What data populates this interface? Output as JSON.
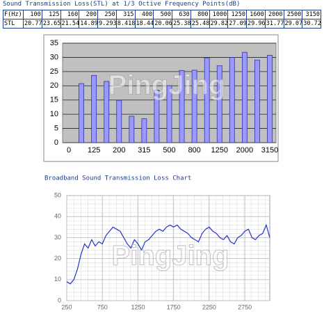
{
  "table": {
    "title": "Sound Transmission Loss(STL) at 1/3 Octive Frequency Points(dB)",
    "header": [
      "F(Hz)",
      100,
      125,
      160,
      200,
      250,
      315,
      400,
      500,
      630,
      800,
      1000,
      1250,
      1600,
      2000,
      2500,
      3150
    ],
    "rows": [
      [
        "STL",
        20.77,
        23.65,
        21.54,
        14.89,
        9.293,
        8.418,
        18.44,
        20.06,
        25.38,
        25.48,
        29.82,
        27.09,
        29.96,
        31.77,
        29.07,
        30.72
      ]
    ]
  },
  "watermark": "PingJing",
  "chart_data": [
    {
      "type": "bar",
      "categories": [
        "0",
        null,
        "125",
        null,
        "200",
        null,
        "315",
        null,
        "500",
        null,
        "800",
        null,
        "1250",
        null,
        "2000",
        null,
        "3150"
      ],
      "values": [
        null,
        20.77,
        23.65,
        21.54,
        14.89,
        9.293,
        8.418,
        18.44,
        20.06,
        25.38,
        25.48,
        29.82,
        27.09,
        29.96,
        31.77,
        29.07,
        30.72
      ],
      "color": "#9999ff",
      "ylim": [
        0,
        35
      ],
      "yticks": [
        0,
        5,
        10,
        15,
        20,
        25,
        30,
        35
      ],
      "grid": true
    },
    {
      "type": "line",
      "title": "Broadband Sound Transmission Loss Chart",
      "x": [
        250,
        300,
        350,
        400,
        450,
        500,
        550,
        600,
        650,
        700,
        750,
        800,
        850,
        900,
        950,
        1000,
        1050,
        1100,
        1150,
        1200,
        1250,
        1300,
        1350,
        1400,
        1450,
        1500,
        1550,
        1600,
        1650,
        1700,
        1750,
        1800,
        1850,
        1900,
        1950,
        2000,
        2050,
        2100,
        2150,
        2200,
        2250,
        2300,
        2350,
        2400,
        2450,
        2500,
        2550,
        2600,
        2650,
        2700,
        2750,
        2800,
        2850,
        2900,
        2950,
        3000,
        3050,
        3100
      ],
      "values": [
        9,
        8,
        10,
        15,
        22,
        27,
        25,
        29,
        26,
        28,
        27,
        31,
        33,
        35,
        34,
        33,
        30,
        27,
        25,
        29,
        27,
        24,
        28,
        29,
        31,
        33,
        34,
        33,
        35,
        36,
        35,
        36,
        34,
        33,
        32,
        30,
        29,
        28,
        32,
        34,
        35,
        33,
        32,
        30,
        29,
        31,
        28,
        27,
        30,
        31,
        33,
        34,
        30,
        29,
        31,
        32,
        36,
        30
      ],
      "color": "#2233cc",
      "xlim": [
        250,
        3100
      ],
      "xticks": [
        250,
        750,
        1250,
        1750,
        2250,
        2750
      ],
      "ylim": [
        0,
        50
      ],
      "yticks": [
        0,
        10,
        20,
        30,
        40,
        50
      ],
      "grid": true
    }
  ]
}
